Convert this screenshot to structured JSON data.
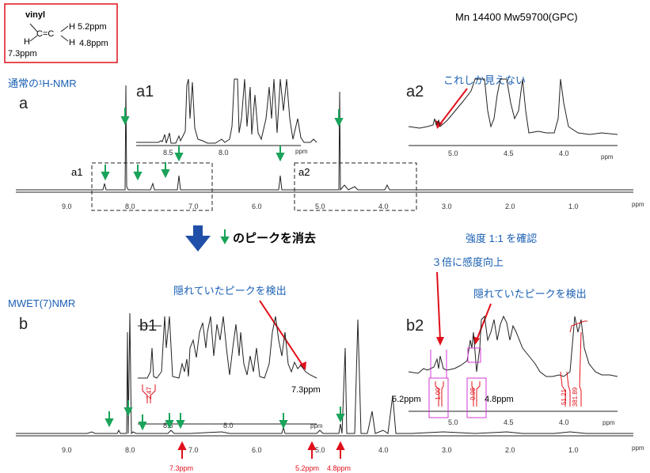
{
  "vinyl_box": {
    "title": "vinyl",
    "h_left_top": "H",
    "h_left_bottom": "H",
    "bond": "C=C",
    "h_right_top": "H",
    "h_right_bottom": "H",
    "shift_top": "5.2ppm",
    "shift_bottom": "4.8ppm",
    "shift_left": "7.3ppm"
  },
  "polymer_info": "Mn 14400 Mw59700(GPC)",
  "panel_a": {
    "method": "通常の¹H-NMR",
    "label": "a",
    "inset1_label": "a1",
    "inset2_label": "a2",
    "box1_label": "a1",
    "box2_label": "a2",
    "note": "これしか見えない",
    "axis_ticks": [
      "9.0",
      "8.0",
      "7.0",
      "6.0",
      "5.0",
      "4.0",
      "3.0",
      "2.0",
      "1.0"
    ],
    "axis_unit": "ppm",
    "inset1_ticks": [
      "8.5",
      "8.0"
    ],
    "inset2_ticks": [
      "5.0",
      "4.5",
      "4.0"
    ],
    "inset_unit": "ppm"
  },
  "middle": {
    "text": "のピークを消去",
    "confirm": "強度 1:1 を確認",
    "sensitivity": "３倍に感度向上"
  },
  "panel_b": {
    "method": "MWET(7)NMR",
    "label": "b",
    "inset1_label": "b1",
    "inset2_label": "b2",
    "note_left": "隠れていたピークを検出",
    "note_right": "隠れていたピークを検出",
    "int_b1": "2.47",
    "b1_shift": "7.3ppm",
    "int_b2_a": "1.00",
    "int_b2_b": "0.98",
    "int_b2_c": "51.21",
    "int_b2_d": "381.89",
    "b2_shift_left": "5.2ppm",
    "b2_shift_right": "4.8ppm",
    "axis_ticks": [
      "9.0",
      "8.0",
      "7.0",
      "6.0",
      "5.0",
      "4.0",
      "3.0",
      "2.0",
      "1.0"
    ],
    "axis_unit": "ppm",
    "inset1_ticks": [
      "8.5",
      "8.0"
    ],
    "inset2_ticks": [
      "5.0",
      "4.5",
      "4.0"
    ],
    "inset_unit": "ppm",
    "bottom_mark_1": "7.3ppm",
    "bottom_mark_2": "5.2ppm",
    "bottom_mark_3": "4.8ppm"
  },
  "colors": {
    "blue": "#1a5fb4",
    "red": "#e0101a",
    "green": "#1aa35a",
    "magenta": "#d33ad6",
    "arrow": "#1f4fa8"
  }
}
